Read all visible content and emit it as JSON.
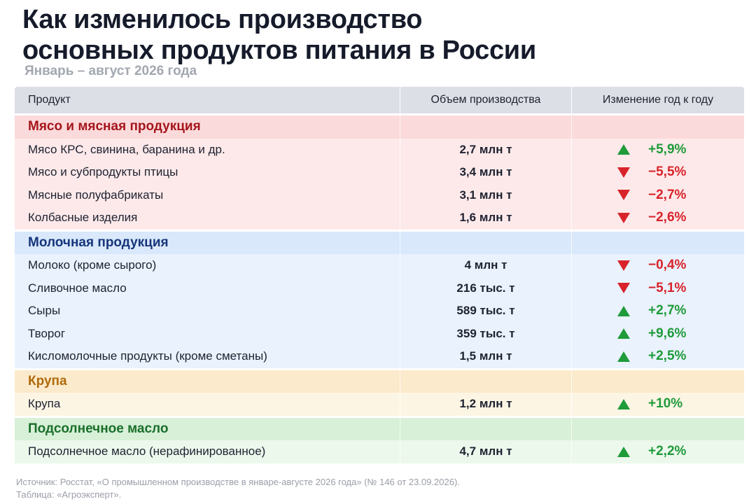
{
  "title": {
    "line1": "Как изменилось производство",
    "line2": "основных продуктов питания в России"
  },
  "subtitle": "Январь – август 2026 года",
  "table": {
    "headers": {
      "product": "Продукт",
      "volume": "Объем производства",
      "change": "Изменение год к году"
    },
    "sections": [
      {
        "title": "Мясо и мясная продукция",
        "color": "#a5161c",
        "rows": [
          {
            "product": "Мясо КРС, свинина, баранина и др.",
            "volume": "2,7 млн т",
            "change": "+5,9%",
            "direction": "up"
          },
          {
            "product": "Мясо и субпродукты птицы",
            "volume": "3,4 млн т",
            "change": "−5,5%",
            "direction": "down"
          },
          {
            "product": "Мясные полуфабрикаты",
            "volume": "3,1 млн т",
            "change": "−2,7%",
            "direction": "down"
          },
          {
            "product": "Колбасные изделия",
            "volume": "1,6 млн т",
            "change": "−2,6%",
            "direction": "down"
          }
        ]
      },
      {
        "title": "Молочная продукция",
        "color": "#17357a",
        "rows": [
          {
            "product": "Молоко (кроме сырого)",
            "volume": "4 млн т",
            "change": "−0,4%",
            "direction": "down"
          },
          {
            "product": "Сливочное масло",
            "volume": "216 тыс. т",
            "change": "−5,1%",
            "direction": "down"
          },
          {
            "product": "Сыры",
            "volume": "589 тыс. т",
            "change": "+2,7%",
            "direction": "up"
          },
          {
            "product": "Творог",
            "volume": "359 тыс. т",
            "change": "+9,6%",
            "direction": "up"
          },
          {
            "product": "Кисломолочные продукты (кроме сметаны)",
            "volume": "1,5 млн т",
            "change": "+2,5%",
            "direction": "up"
          }
        ]
      },
      {
        "title": "Крупа",
        "color": "#b06a0c",
        "rows": [
          {
            "product": "Крупа",
            "volume": "1,2 млн т",
            "change": "+10%",
            "direction": "up"
          }
        ]
      },
      {
        "title": "Подсолнечное масло",
        "color": "#1a6f2a",
        "rows": [
          {
            "product": "Подсолнечное масло (нерафинированное)",
            "volume": "4,7 млн т",
            "change": "+2,2%",
            "direction": "up"
          }
        ]
      }
    ]
  },
  "footer": {
    "source": "Источник: Росстат, «О промышленном производстве в январе-августе 2026 года» (№ 146 от 23.09.2026).",
    "credit": "Таблица: «Агроэксперт»."
  },
  "colors": {
    "up": "#1f9b3a",
    "down": "#d8232a"
  }
}
